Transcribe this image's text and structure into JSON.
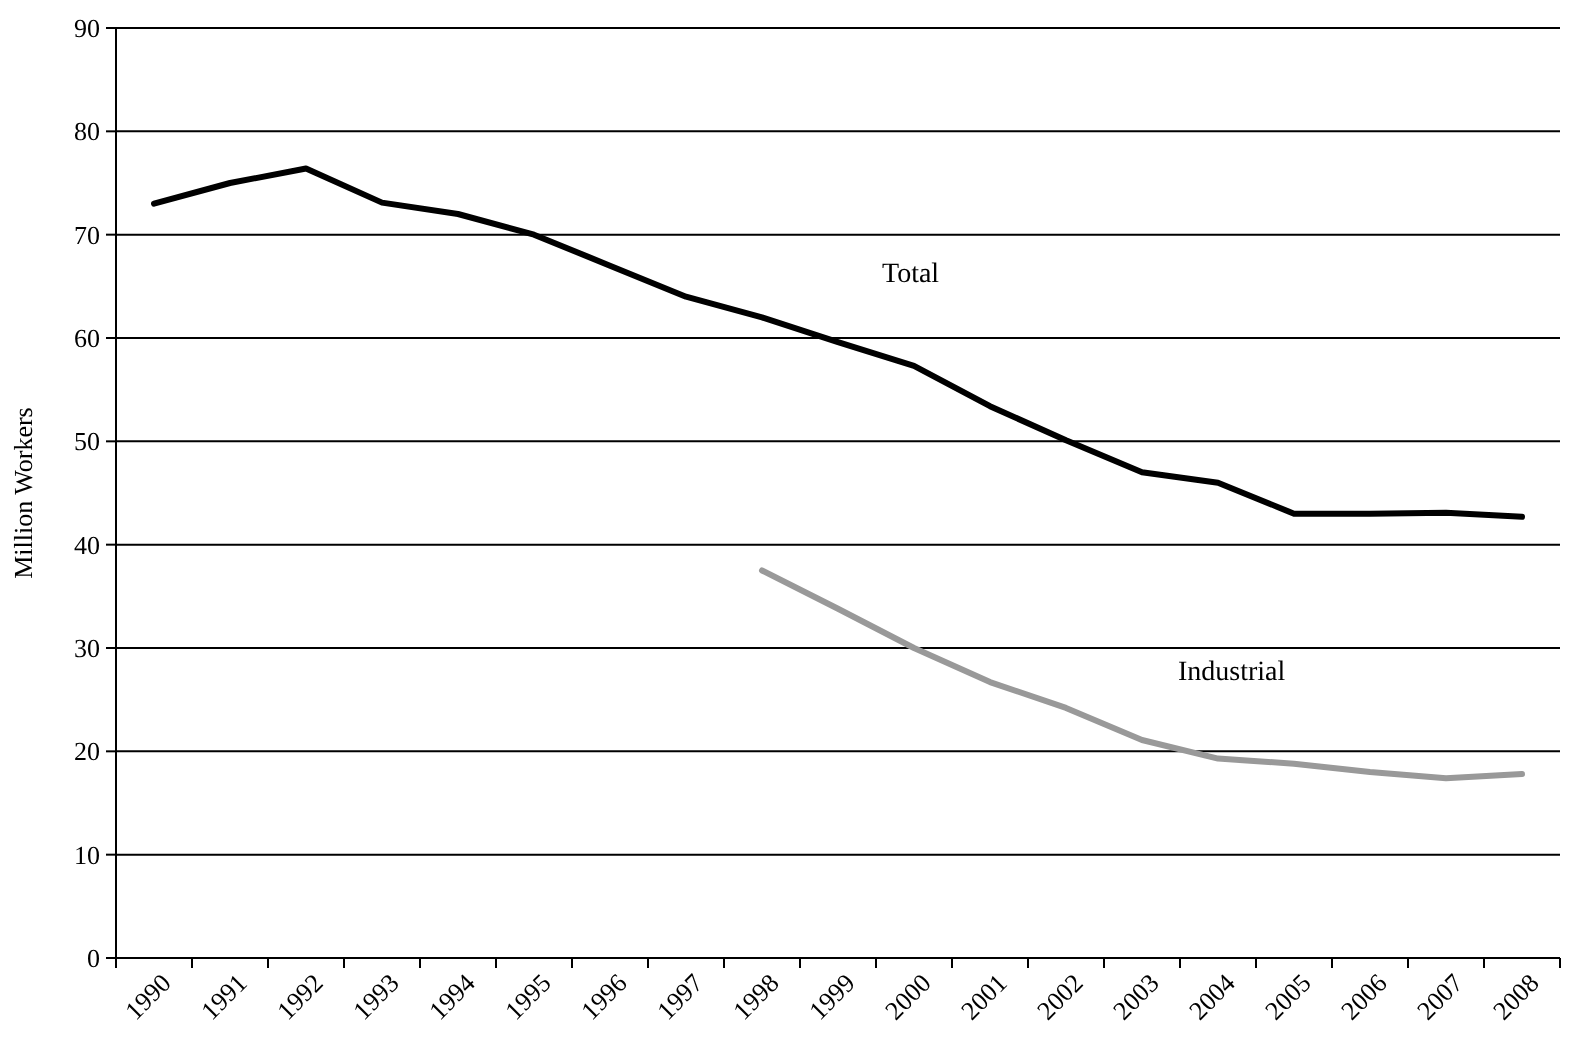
{
  "chart_data": {
    "type": "line",
    "ylabel": "Million Workers",
    "categories": [
      "1990",
      "1991",
      "1992",
      "1993",
      "1994",
      "1995",
      "1996",
      "1997",
      "1998",
      "1999",
      "2000",
      "2001",
      "2002",
      "2003",
      "2004",
      "2005",
      "2006",
      "2007",
      "2008"
    ],
    "series": [
      {
        "name": "Total",
        "color": "#000000",
        "values": [
          73,
          75,
          76.4,
          73.1,
          72,
          70,
          67,
          64,
          62,
          59.6,
          57.3,
          53.4,
          50.1,
          47,
          46,
          43,
          43,
          43.1,
          42.7
        ]
      },
      {
        "name": "Industrial",
        "color": "#999999",
        "values": [
          null,
          null,
          null,
          null,
          null,
          null,
          null,
          null,
          37.5,
          33.8,
          30,
          26.7,
          24.2,
          21.1,
          19.3,
          18.8,
          18,
          17.4,
          17.8
        ]
      }
    ],
    "ylim": [
      0,
      90
    ],
    "yticks": [
      0,
      10,
      20,
      30,
      40,
      50,
      60,
      70,
      80,
      90
    ],
    "grid": "y",
    "legend": false,
    "marker": "none",
    "line_style": "solid"
  }
}
